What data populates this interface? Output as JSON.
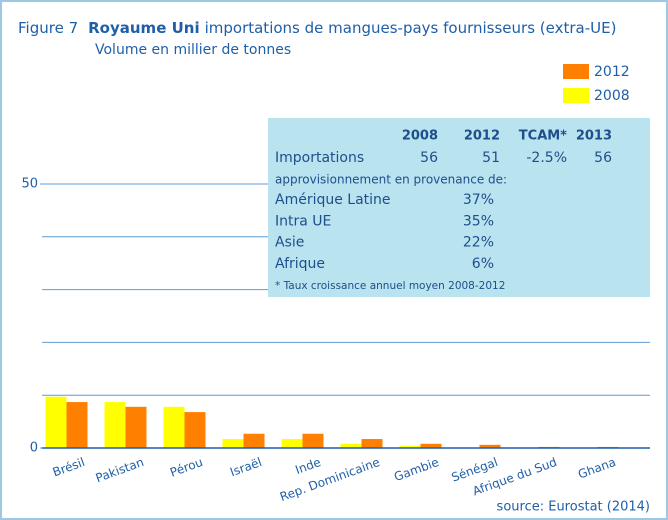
{
  "chart_data": {
    "type": "bar",
    "title_prefix": "Figure 7",
    "title_bold": "Royaume Uni",
    "title_rest": "importations de mangues-pays fournisseurs (extra-UE)",
    "subtitle": "Volume en millier de tonnes",
    "source": "source: Eurostat (2014)",
    "categories": [
      "Brésil",
      "Pakistan",
      "Pérou",
      "Israël",
      "Inde",
      "Rep. Dominicaine",
      "Gambie",
      "Sénégal",
      "Afrique du Sud",
      "Ghana"
    ],
    "series": [
      {
        "name": "2008",
        "color": "#ffff00",
        "values": [
          9.7,
          8.7,
          7.8,
          1.7,
          1.7,
          0.8,
          0.4,
          0,
          0,
          0
        ]
      },
      {
        "name": "2012",
        "color": "#ff7f00",
        "values": [
          8.7,
          7.8,
          6.8,
          2.7,
          2.7,
          1.7,
          0.8,
          0.6,
          0.2,
          0.2
        ]
      }
    ],
    "ylim": [
      0,
      50
    ],
    "yticks": [
      0,
      50
    ],
    "ygrid": [
      10,
      20,
      30,
      40,
      50
    ],
    "grid": true,
    "legend": "top-right",
    "info_box": {
      "header": [
        "2008",
        "2012",
        "TCAM*",
        "2013"
      ],
      "row_label": "Importations",
      "row_cells": [
        "56",
        "51",
        "-2.5%",
        "56"
      ],
      "subheading": "approvisionnement en provenance de:",
      "sources": [
        [
          "Amérique Latine",
          "37%"
        ],
        [
          "Intra UE",
          "35%"
        ],
        [
          "Asie",
          "22%"
        ],
        [
          "Afrique",
          "6%"
        ]
      ],
      "footnote": "* Taux croissance annuel moyen 2008-2012"
    }
  }
}
